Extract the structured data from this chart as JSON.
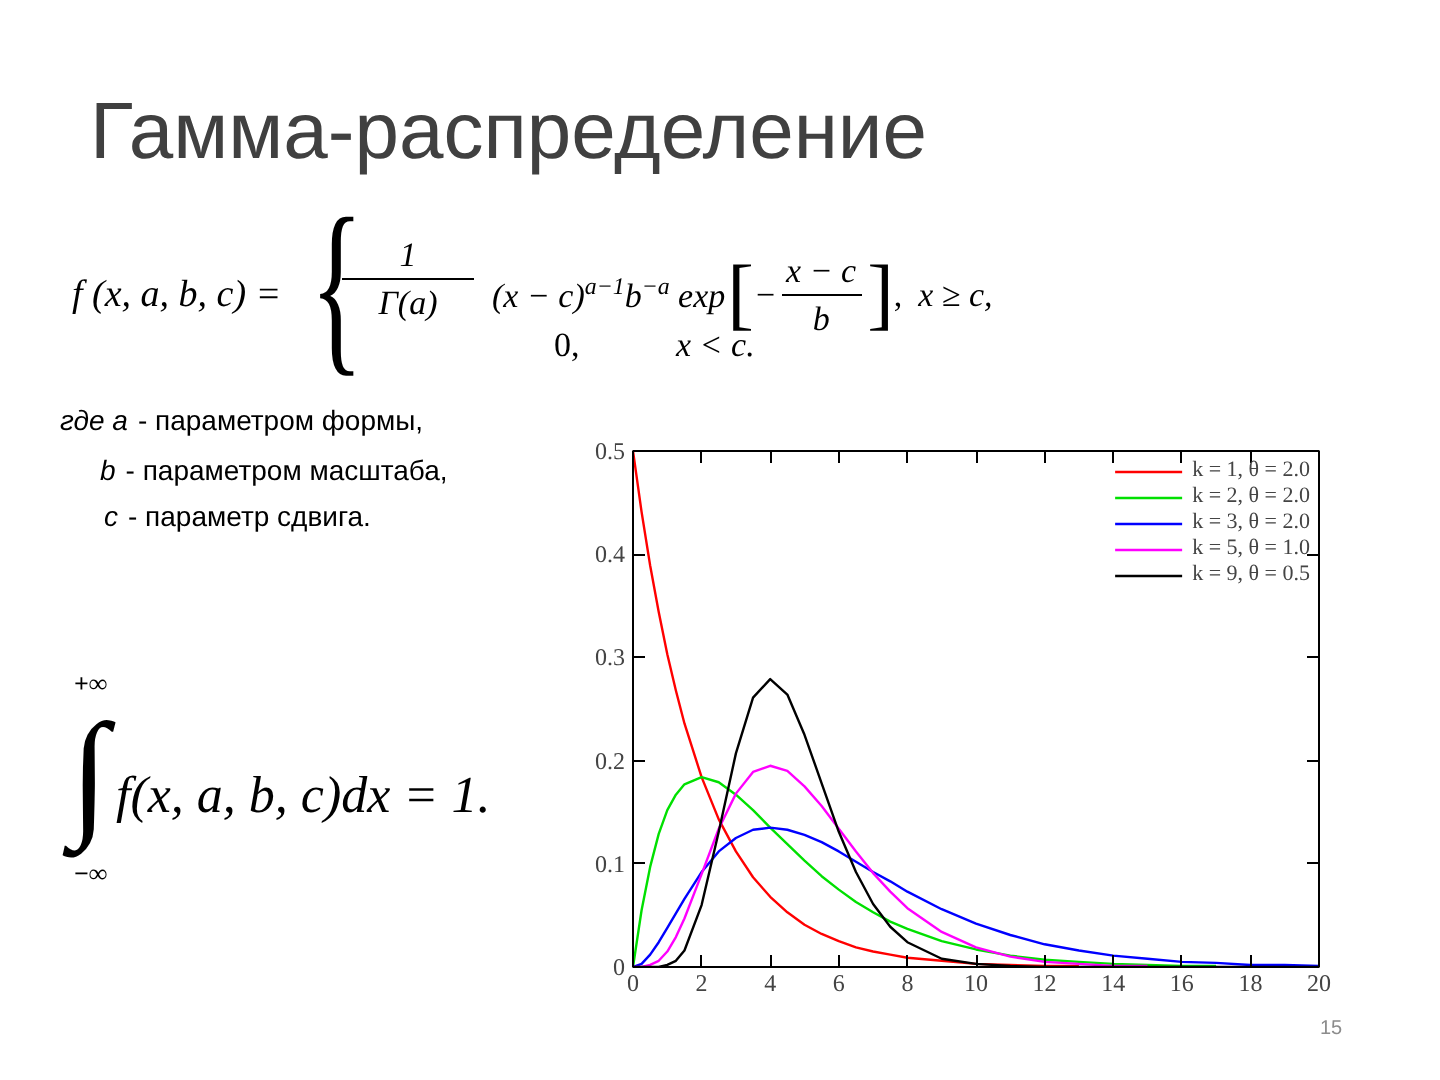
{
  "chart_data": {
    "type": "line",
    "title": "Гамма-распределение",
    "annotations": [
      "f (x, a, b, c) =",
      "{",
      "1",
      "Γ(a)",
      "(x − c)$^{a−1}$b$^{−a}$ exp",
      "[",
      "−",
      "x − c",
      "b",
      "]",
      ",",
      "x ≥ c,",
      "0,",
      "x < c.",
      "где a",
      "- параметром формы,",
      "b",
      "- параметром масштаба,",
      "c",
      "- параметр сдвига.",
      "+∞",
      "∫",
      "−∞",
      "f(x, a, b, c)dx = 1.",
      "15"
    ],
    "x": [
      0,
      0.25,
      0.5,
      0.75,
      1,
      1.25,
      1.5,
      2,
      2.5,
      3,
      3.5,
      4,
      4.5,
      5,
      5.5,
      6,
      6.5,
      7,
      7.5,
      8,
      9,
      10,
      11,
      12,
      13,
      14,
      15,
      16,
      17,
      18,
      19,
      20
    ],
    "series": [
      {
        "name": "k = 1, θ = 2.0",
        "color": "#ff0000",
        "values": [
          0.5,
          0.441,
          0.389,
          0.344,
          0.303,
          0.268,
          0.236,
          0.184,
          0.143,
          0.112,
          0.087,
          0.068,
          0.053,
          0.041,
          0.032,
          0.025,
          0.019,
          0.015,
          0.012,
          0.009,
          0.006,
          0.003,
          0.002,
          0.001,
          0.001,
          null,
          null,
          null,
          null,
          null,
          null,
          null
        ]
      },
      {
        "name": "k = 2, θ = 2.0",
        "color": "#00e000",
        "values": [
          0,
          0.055,
          0.097,
          0.129,
          0.152,
          0.167,
          0.177,
          0.184,
          0.179,
          0.167,
          0.152,
          0.135,
          0.119,
          0.103,
          0.088,
          0.075,
          0.063,
          0.053,
          0.044,
          0.037,
          0.025,
          0.017,
          0.011,
          0.007,
          0.005,
          0.003,
          0.002,
          0.001,
          0.001,
          null,
          null,
          null
        ]
      },
      {
        "name": "k = 3, θ = 2.0",
        "color": "#0000ff",
        "values": [
          0,
          0.003,
          0.012,
          0.024,
          0.038,
          0.052,
          0.066,
          0.092,
          0.112,
          0.125,
          0.133,
          0.135,
          0.133,
          0.128,
          0.121,
          0.112,
          0.102,
          0.092,
          0.083,
          0.073,
          0.056,
          0.042,
          0.031,
          0.022,
          0.016,
          0.011,
          0.008,
          0.005,
          0.004,
          0.002,
          0.002,
          0.001
        ]
      },
      {
        "name": "k = 5, θ = 1.0",
        "color": "#ff00ff",
        "values": [
          0,
          0,
          0.002,
          0.006,
          0.015,
          0.029,
          0.047,
          0.09,
          0.134,
          0.168,
          0.189,
          0.195,
          0.19,
          0.175,
          0.156,
          0.134,
          0.112,
          0.091,
          0.073,
          0.057,
          0.034,
          0.019,
          0.01,
          0.005,
          0.003,
          0.001,
          0.001,
          null,
          null,
          null,
          null,
          null
        ]
      },
      {
        "name": "k = 9, θ = 0.5",
        "color": "#000000",
        "values": [
          0,
          0,
          0,
          0,
          0.002,
          0.006,
          0.016,
          0.06,
          0.131,
          0.207,
          0.261,
          0.279,
          0.264,
          0.225,
          0.178,
          0.131,
          0.092,
          0.061,
          0.039,
          0.024,
          0.008,
          0.003,
          0.001,
          0,
          0,
          0,
          0,
          0,
          0,
          0,
          0,
          0
        ]
      }
    ],
    "xlim": [
      0,
      20
    ],
    "ylim": [
      0,
      0.5
    ],
    "xticks": [
      0,
      2,
      4,
      6,
      8,
      10,
      12,
      14,
      16,
      18,
      20
    ],
    "yticks": [
      0,
      0.1,
      0.2,
      0.3,
      0.4,
      0.5
    ],
    "legend": "top right",
    "grid": false
  }
}
